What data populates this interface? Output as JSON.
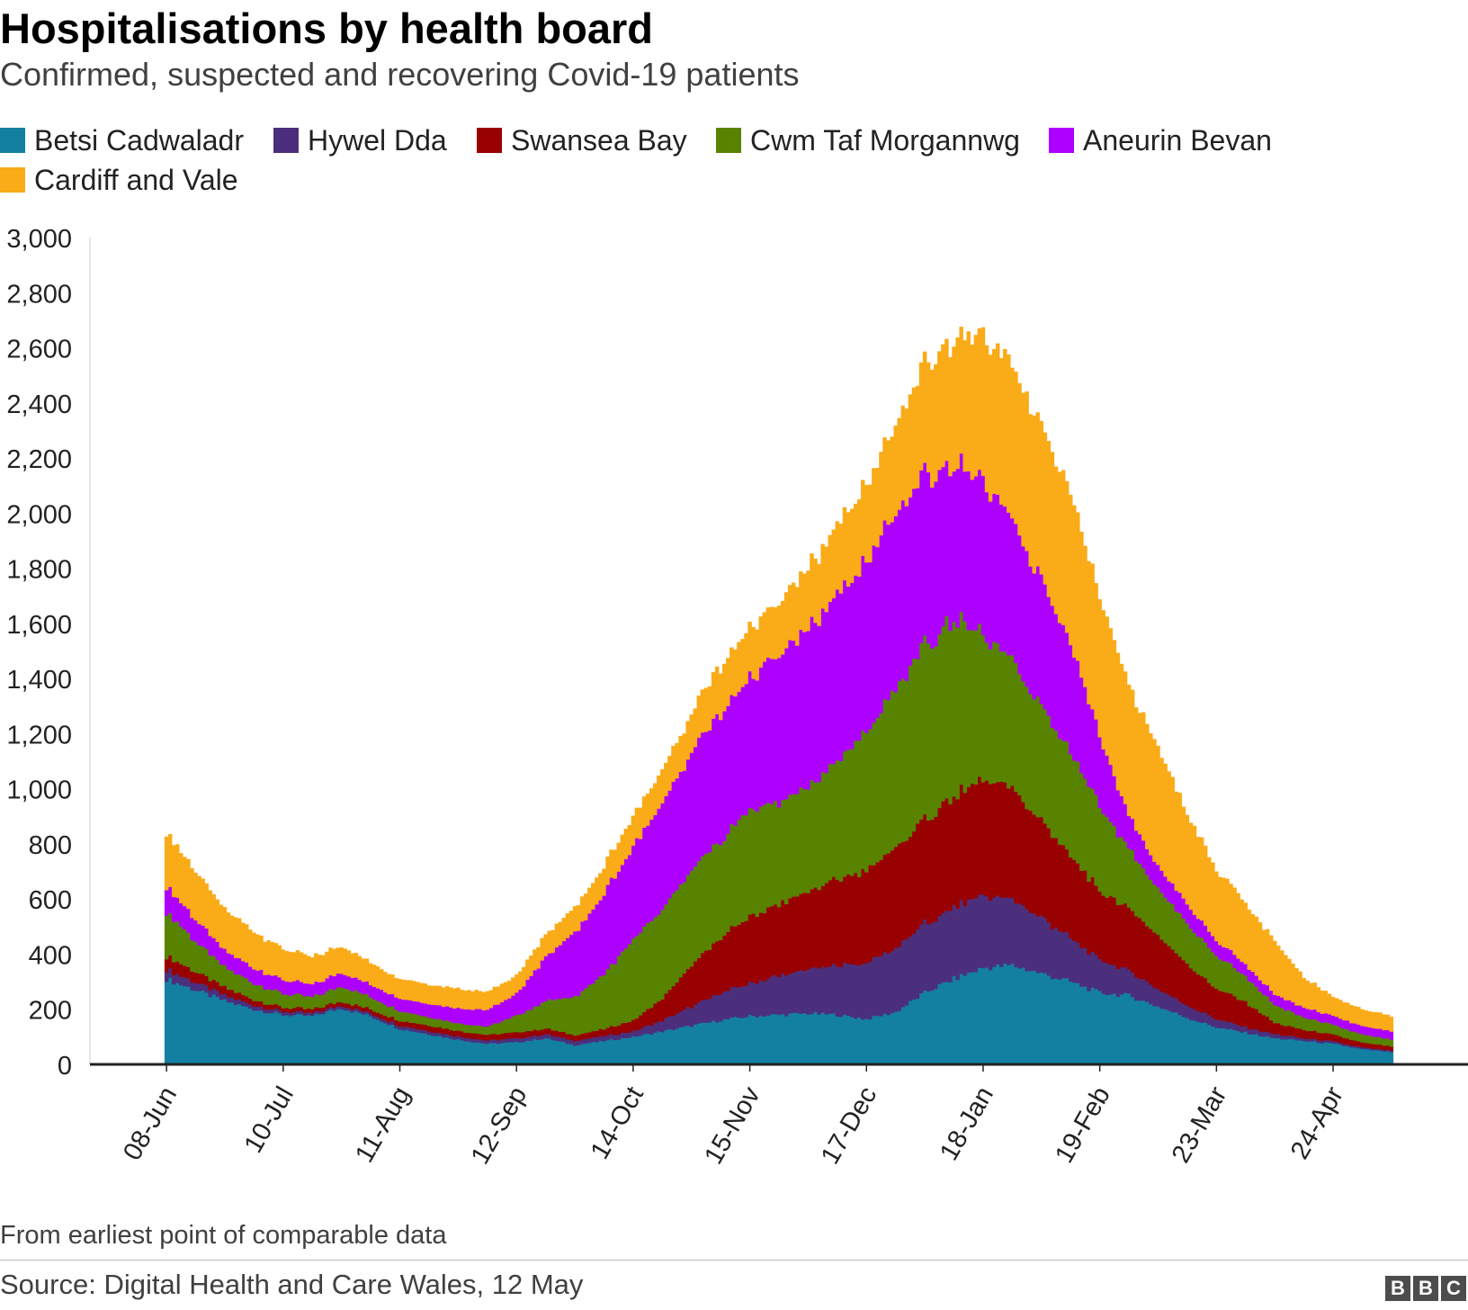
{
  "title": "Hospitalisations by health board",
  "subtitle": "Confirmed, suspected and recovering Covid-19 patients",
  "footnote": "From earliest point of comparable data",
  "source": "Source: Digital Health and Care Wales, 12 May",
  "logo": {
    "letters": [
      "B",
      "B",
      "C"
    ],
    "name": "BBC"
  },
  "chart_data": {
    "type": "area",
    "stacked": true,
    "title": "Hospitalisations by health board",
    "subtitle": "Confirmed, suspected and recovering Covid-19 patients",
    "xlabel": "",
    "ylabel": "",
    "ylim": [
      0,
      3000
    ],
    "yticks": [
      0,
      200,
      400,
      600,
      800,
      1000,
      1200,
      1400,
      1600,
      1800,
      2000,
      2200,
      2400,
      2600,
      2800,
      3000
    ],
    "ytick_labels": [
      "0",
      "200",
      "400",
      "600",
      "800",
      "1,000",
      "1,200",
      "1,400",
      "1,600",
      "1,800",
      "2,000",
      "2,200",
      "2,400",
      "2,600",
      "2,800",
      "3,000"
    ],
    "x_tick_labels": [
      "08-Jun",
      "10-Jul",
      "11-Aug",
      "12-Sep",
      "14-Oct",
      "15-Nov",
      "17-Dec",
      "18-Jan",
      "19-Feb",
      "23-Mar",
      "24-Apr"
    ],
    "x_tick_days": [
      0,
      32,
      64,
      96,
      128,
      160,
      192,
      224,
      256,
      288,
      320
    ],
    "x_range_days": [
      -21,
      357
    ],
    "grid": false,
    "legend_position": "top",
    "x": [
      0,
      8,
      16,
      24,
      32,
      40,
      48,
      56,
      64,
      72,
      80,
      88,
      96,
      104,
      112,
      120,
      128,
      136,
      144,
      152,
      160,
      168,
      176,
      184,
      192,
      200,
      208,
      216,
      224,
      232,
      240,
      248,
      256,
      264,
      272,
      280,
      288,
      296,
      304,
      312,
      320,
      328,
      336
    ],
    "series": [
      {
        "name": "Betsi Cadwaladr",
        "color": "#1380A1",
        "values": [
          310,
          270,
          230,
          200,
          180,
          175,
          205,
          175,
          130,
          110,
          90,
          75,
          80,
          95,
          70,
          85,
          100,
          120,
          140,
          160,
          175,
          180,
          185,
          180,
          165,
          190,
          260,
          310,
          350,
          360,
          330,
          300,
          260,
          250,
          210,
          170,
          135,
          115,
          95,
          85,
          75,
          55,
          45
        ]
      },
      {
        "name": "Hywel Dda",
        "color": "#4B2F7C",
        "values": [
          35,
          28,
          20,
          15,
          12,
          10,
          10,
          10,
          12,
          12,
          12,
          12,
          14,
          15,
          16,
          18,
          20,
          40,
          70,
          100,
          120,
          140,
          160,
          180,
          200,
          230,
          250,
          260,
          260,
          240,
          200,
          160,
          120,
          90,
          65,
          45,
          30,
          20,
          15,
          10,
          8,
          6,
          5
        ]
      },
      {
        "name": "Swansea Bay",
        "color": "#990000",
        "values": [
          50,
          38,
          28,
          20,
          15,
          14,
          15,
          15,
          18,
          20,
          20,
          20,
          22,
          20,
          20,
          25,
          40,
          80,
          150,
          200,
          240,
          260,
          280,
          310,
          340,
          360,
          380,
          400,
          420,
          400,
          350,
          300,
          250,
          230,
          190,
          150,
          110,
          90,
          40,
          30,
          25,
          18,
          15
        ]
      },
      {
        "name": "Cwm Taf Morgannwg",
        "color": "#588300",
        "values": [
          160,
          110,
          75,
          60,
          50,
          45,
          55,
          45,
          35,
          30,
          28,
          30,
          60,
          100,
          140,
          200,
          290,
          320,
          340,
          350,
          390,
          370,
          380,
          430,
          500,
          580,
          630,
          650,
          520,
          460,
          420,
          380,
          310,
          220,
          170,
          150,
          120,
          95,
          65,
          45,
          35,
          30,
          25
        ]
      },
      {
        "name": "Aneurin Bevan",
        "color": "#AE00FF",
        "values": [
          95,
          80,
          60,
          55,
          50,
          45,
          50,
          45,
          45,
          48,
          55,
          60,
          80,
          160,
          230,
          290,
          340,
          380,
          430,
          460,
          480,
          530,
          570,
          600,
          620,
          630,
          620,
          560,
          560,
          500,
          460,
          400,
          250,
          120,
          80,
          70,
          55,
          42,
          38,
          35,
          32,
          30,
          30
        ]
      },
      {
        "name": "Cardiff and Vale",
        "color": "#FAAB18",
        "values": [
          200,
          170,
          150,
          130,
          110,
          100,
          95,
          80,
          70,
          70,
          70,
          65,
          65,
          80,
          90,
          100,
          110,
          120,
          140,
          170,
          180,
          190,
          220,
          250,
          280,
          320,
          400,
          450,
          530,
          560,
          560,
          540,
          500,
          470,
          430,
          330,
          260,
          220,
          190,
          110,
          70,
          60,
          55
        ]
      }
    ]
  }
}
